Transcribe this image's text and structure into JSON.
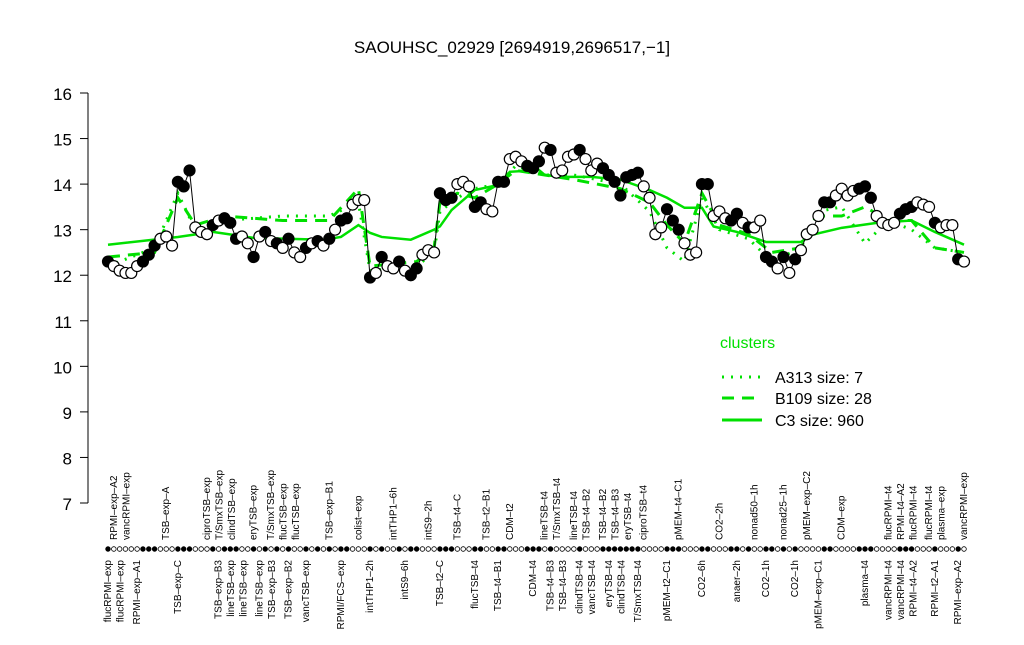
{
  "chart_data": {
    "type": "line",
    "title": "SAOUHSC_02929 [2694919,2696517,−1]",
    "xlabel": "",
    "ylabel": "",
    "ylim": [
      7,
      16
    ],
    "yticks": [
      7,
      8,
      9,
      10,
      11,
      12,
      13,
      14,
      15,
      16
    ],
    "grid": false,
    "legend_placement": "right",
    "legend": {
      "title": "clusters",
      "entries": [
        {
          "label": "A313 size: 7",
          "style": "dotted"
        },
        {
          "label": "B109 size: 28",
          "style": "dashed"
        },
        {
          "label": "C3 size: 960",
          "style": "solid"
        }
      ]
    },
    "colors": {
      "cluster": "#00e000",
      "points": "#000000"
    },
    "values": [
      12.3,
      12.2,
      12.1,
      12.05,
      12.05,
      12.2,
      12.3,
      12.45,
      12.65,
      12.8,
      12.85,
      12.65,
      14.05,
      13.95,
      14.3,
      13.05,
      12.95,
      12.9,
      13.1,
      13.2,
      13.25,
      13.15,
      12.8,
      12.85,
      12.7,
      12.4,
      12.85,
      12.95,
      12.75,
      12.7,
      12.6,
      12.8,
      12.5,
      12.4,
      12.6,
      12.7,
      12.75,
      12.65,
      12.8,
      13.0,
      13.2,
      13.25,
      13.55,
      13.65,
      13.65,
      11.95,
      12.05,
      12.4,
      12.2,
      12.15,
      12.3,
      12.1,
      12.0,
      12.15,
      12.45,
      12.55,
      12.5,
      13.8,
      13.65,
      13.7,
      14.0,
      14.05,
      13.95,
      13.5,
      13.6,
      13.45,
      13.4,
      14.05,
      14.05,
      14.55,
      14.6,
      14.5,
      14.4,
      14.35,
      14.5,
      14.8,
      14.75,
      14.25,
      14.3,
      14.6,
      14.65,
      14.75,
      14.55,
      14.3,
      14.45,
      14.35,
      14.2,
      14.05,
      13.75,
      14.15,
      14.2,
      14.25,
      13.95,
      13.7,
      12.9,
      13.05,
      13.45,
      13.2,
      13.0,
      12.7,
      12.45,
      12.5,
      14.0,
      14.0,
      13.3,
      13.4,
      13.25,
      13.2,
      13.35,
      13.15,
      13.05,
      13.05,
      13.2,
      12.4,
      12.3,
      12.15,
      12.4,
      12.05,
      12.35,
      12.55,
      12.9,
      13.0,
      13.3,
      13.6,
      13.6,
      13.75,
      13.9,
      13.75,
      13.85,
      13.9,
      13.95,
      13.7,
      13.3,
      13.15,
      13.1,
      13.15,
      13.35,
      13.45,
      13.5,
      13.6,
      13.55,
      13.5,
      13.15,
      13.05,
      13.1,
      13.1,
      12.35,
      12.3
    ],
    "filled": [
      0,
      6,
      7,
      8,
      12,
      13,
      14,
      18,
      20,
      21,
      22,
      25,
      27,
      29,
      31,
      34,
      36,
      38,
      40,
      41,
      45,
      47,
      50,
      52,
      53,
      57,
      58,
      59,
      63,
      64,
      67,
      68,
      72,
      73,
      74,
      76,
      81,
      85,
      86,
      87,
      88,
      89,
      90,
      91,
      96,
      97,
      98,
      102,
      103,
      107,
      108,
      110,
      113,
      114,
      116,
      118,
      123,
      124,
      129,
      130,
      131,
      136,
      137,
      138,
      142,
      146
    ],
    "series": [
      {
        "name": "C3 size: 960",
        "style": "solid",
        "points": [
          [
            0,
            12.67
          ],
          [
            12,
            12.84
          ],
          [
            18,
            12.95
          ],
          [
            25,
            12.82
          ],
          [
            37,
            12.78
          ],
          [
            40,
            12.84
          ],
          [
            43,
            13.1
          ],
          [
            45,
            12.93
          ],
          [
            47,
            12.84
          ],
          [
            52,
            12.78
          ],
          [
            56,
            13.0
          ],
          [
            57,
            13.07
          ],
          [
            59,
            13.43
          ],
          [
            63,
            13.87
          ],
          [
            67,
            13.98
          ],
          [
            69,
            14.27
          ],
          [
            74,
            14.31
          ],
          [
            75,
            14.2
          ],
          [
            78,
            14.16
          ],
          [
            83,
            14.16
          ],
          [
            88,
            14.1
          ],
          [
            93,
            13.87
          ],
          [
            96,
            13.7
          ],
          [
            99,
            13.48
          ],
          [
            102,
            13.48
          ],
          [
            104,
            13.07
          ],
          [
            108,
            12.95
          ],
          [
            113,
            12.73
          ],
          [
            119,
            12.73
          ],
          [
            121,
            12.89
          ],
          [
            126,
            13.04
          ],
          [
            132,
            13.15
          ],
          [
            138,
            13.2
          ],
          [
            142,
            12.95
          ],
          [
            147,
            12.67
          ]
        ]
      },
      {
        "name": "B109 size: 28",
        "style": "dashed",
        "points": [
          [
            0,
            12.4
          ],
          [
            8,
            12.5
          ],
          [
            12,
            13.7
          ],
          [
            15,
            13.1
          ],
          [
            20,
            13.3
          ],
          [
            30,
            13.2
          ],
          [
            38,
            13.2
          ],
          [
            43,
            13.9
          ],
          [
            45,
            12.2
          ],
          [
            53,
            12.3
          ],
          [
            56,
            12.6
          ],
          [
            57,
            13.6
          ],
          [
            60,
            13.8
          ],
          [
            63,
            13.7
          ],
          [
            67,
            14.0
          ],
          [
            70,
            14.3
          ],
          [
            75,
            14.2
          ],
          [
            80,
            14.1
          ],
          [
            88,
            13.9
          ],
          [
            93,
            13.6
          ],
          [
            96,
            13.1
          ],
          [
            99,
            12.7
          ],
          [
            102,
            13.8
          ],
          [
            105,
            13.1
          ],
          [
            110,
            12.9
          ],
          [
            114,
            12.5
          ],
          [
            119,
            12.6
          ],
          [
            122,
            13.3
          ],
          [
            126,
            13.3
          ],
          [
            130,
            13.5
          ],
          [
            134,
            13.2
          ],
          [
            138,
            13.2
          ],
          [
            142,
            12.6
          ],
          [
            147,
            12.5
          ]
        ]
      },
      {
        "name": "A313 size: 7",
        "style": "dotted",
        "points": [
          [
            0,
            12.2
          ],
          [
            8,
            12.6
          ],
          [
            12,
            13.8
          ],
          [
            15,
            13.0
          ],
          [
            20,
            13.2
          ],
          [
            30,
            13.3
          ],
          [
            38,
            13.3
          ],
          [
            43,
            13.6
          ],
          [
            45,
            12.1
          ],
          [
            53,
            12.2
          ],
          [
            56,
            12.5
          ],
          [
            57,
            13.4
          ],
          [
            60,
            13.7
          ],
          [
            63,
            13.9
          ],
          [
            67,
            14.0
          ],
          [
            70,
            14.4
          ],
          [
            75,
            14.2
          ],
          [
            80,
            14.2
          ],
          [
            88,
            14.0
          ],
          [
            93,
            13.4
          ],
          [
            96,
            12.6
          ],
          [
            99,
            12.3
          ],
          [
            102,
            13.7
          ],
          [
            105,
            13.0
          ],
          [
            110,
            12.8
          ],
          [
            114,
            12.3
          ],
          [
            119,
            12.6
          ],
          [
            122,
            13.4
          ],
          [
            126,
            13.5
          ],
          [
            130,
            12.7
          ],
          [
            134,
            13.2
          ],
          [
            138,
            13.0
          ],
          [
            142,
            12.6
          ],
          [
            147,
            12.5
          ]
        ]
      }
    ],
    "top_labels": [
      {
        "at": 1,
        "text": "RPMI–exp–A2"
      },
      {
        "at": 3,
        "text": "vancRPMI–exp"
      },
      {
        "at": 10,
        "text": "TSB–exp–A"
      },
      {
        "at": 17,
        "text": "ciproTSB–exp"
      },
      {
        "at": 19,
        "text": "T/SmxTSB–exp"
      },
      {
        "at": 21,
        "text": "clindTSB–exp"
      },
      {
        "at": 25,
        "text": "eryTSB–exp"
      },
      {
        "at": 28,
        "text": "T/SmxTSB–exp"
      },
      {
        "at": 29,
        "text": "flucTSB–exp"
      },
      {
        "at": 31,
        "text": "flucTSB–exp"
      },
      {
        "at": 38,
        "text": "TSB–exp–B1"
      },
      {
        "at": 43,
        "text": "colist–exp"
      },
      {
        "at": 49,
        "text": "intTHP1–6h"
      },
      {
        "at": 55,
        "text": "intS9–2h"
      },
      {
        "at": 60,
        "text": "TSB–t4–C"
      },
      {
        "at": 65,
        "text": "TSB–t2–B1"
      },
      {
        "at": 69,
        "text": "CDM–t2"
      },
      {
        "at": 75,
        "text": "lineTSB–t4"
      },
      {
        "at": 77,
        "text": "T/SmxTSB–t4"
      },
      {
        "at": 80,
        "text": "lineTSB–t4"
      },
      {
        "at": 82,
        "text": "TSB–t4–B2"
      },
      {
        "at": 85,
        "text": "TSB–t4–B2"
      },
      {
        "at": 87,
        "text": "TSB–t4–B3"
      },
      {
        "at": 89,
        "text": "eryTSB–t4"
      },
      {
        "at": 92,
        "text": "ciproTSB–t4"
      },
      {
        "at": 98,
        "text": "pMEM–t4–C1"
      },
      {
        "at": 105,
        "text": "CO2–2h"
      },
      {
        "at": 111,
        "text": "nonad50–1h"
      },
      {
        "at": 116,
        "text": "nonad25–1h"
      },
      {
        "at": 120,
        "text": "pMEM–exp–C2"
      },
      {
        "at": 126,
        "text": "CDM–exp"
      },
      {
        "at": 134,
        "text": "flucRPMI–t4"
      },
      {
        "at": 135,
        "text": "RPMI–t4–A2"
      },
      {
        "at": 138,
        "text": "flucRPMI–t4"
      },
      {
        "at": 141,
        "text": "flucRPMI–t4"
      },
      {
        "at": 143,
        "text": "plasma–exp"
      },
      {
        "at": 147,
        "text": "vancRPMI–exp"
      }
    ],
    "bottom_labels": [
      {
        "at": 0,
        "text": "flucRPMI–exp"
      },
      {
        "at": 2,
        "text": "flucRPMI–exp"
      },
      {
        "at": 5,
        "text": "RPMI–exp–A1"
      },
      {
        "at": 12,
        "text": "TSB–exp–C"
      },
      {
        "at": 19,
        "text": "TSB–exp–B3"
      },
      {
        "at": 21,
        "text": "lineTSB–exp"
      },
      {
        "at": 23,
        "text": "lineTSB–exp"
      },
      {
        "at": 26,
        "text": "lineTSB–exp"
      },
      {
        "at": 28,
        "text": "TSB–exp–B3"
      },
      {
        "at": 31,
        "text": "TSB–exp–B2"
      },
      {
        "at": 34,
        "text": "vancTSB–exp"
      },
      {
        "at": 40,
        "text": "RPMI/FCS–exp"
      },
      {
        "at": 45,
        "text": "intTHP1–2h"
      },
      {
        "at": 51,
        "text": "intS9–6h"
      },
      {
        "at": 57,
        "text": "TSB–t2–C"
      },
      {
        "at": 63,
        "text": "flucTSB–t4"
      },
      {
        "at": 67,
        "text": "TSB–t4–B1"
      },
      {
        "at": 73,
        "text": "CDM–t4"
      },
      {
        "at": 76,
        "text": "TSB–t4–B3"
      },
      {
        "at": 78,
        "text": "TSB–t4–B3"
      },
      {
        "at": 81,
        "text": "clindTSB–t4"
      },
      {
        "at": 83,
        "text": "vancTSB–t4"
      },
      {
        "at": 86,
        "text": "eryTSB–t4"
      },
      {
        "at": 88,
        "text": "clindTSB–t4"
      },
      {
        "at": 91,
        "text": "T/SmxTSB–t4"
      },
      {
        "at": 96,
        "text": "pMEM–t2–C1"
      },
      {
        "at": 102,
        "text": "CO2–6h"
      },
      {
        "at": 108,
        "text": "anaer–2h"
      },
      {
        "at": 113,
        "text": "CO2–1h"
      },
      {
        "at": 118,
        "text": "CO2–1h"
      },
      {
        "at": 122,
        "text": "pMEM–exp–C1"
      },
      {
        "at": 130,
        "text": "plasma–t4"
      },
      {
        "at": 134,
        "text": "vancRPMI–t4"
      },
      {
        "at": 135,
        "text": "vancRPMI–t4"
      },
      {
        "at": 138,
        "text": "RPMI–t4–A2"
      },
      {
        "at": 142,
        "text": "RPMI–t2–A1"
      },
      {
        "at": 146,
        "text": "RPMI–exp–A2"
      }
    ]
  }
}
